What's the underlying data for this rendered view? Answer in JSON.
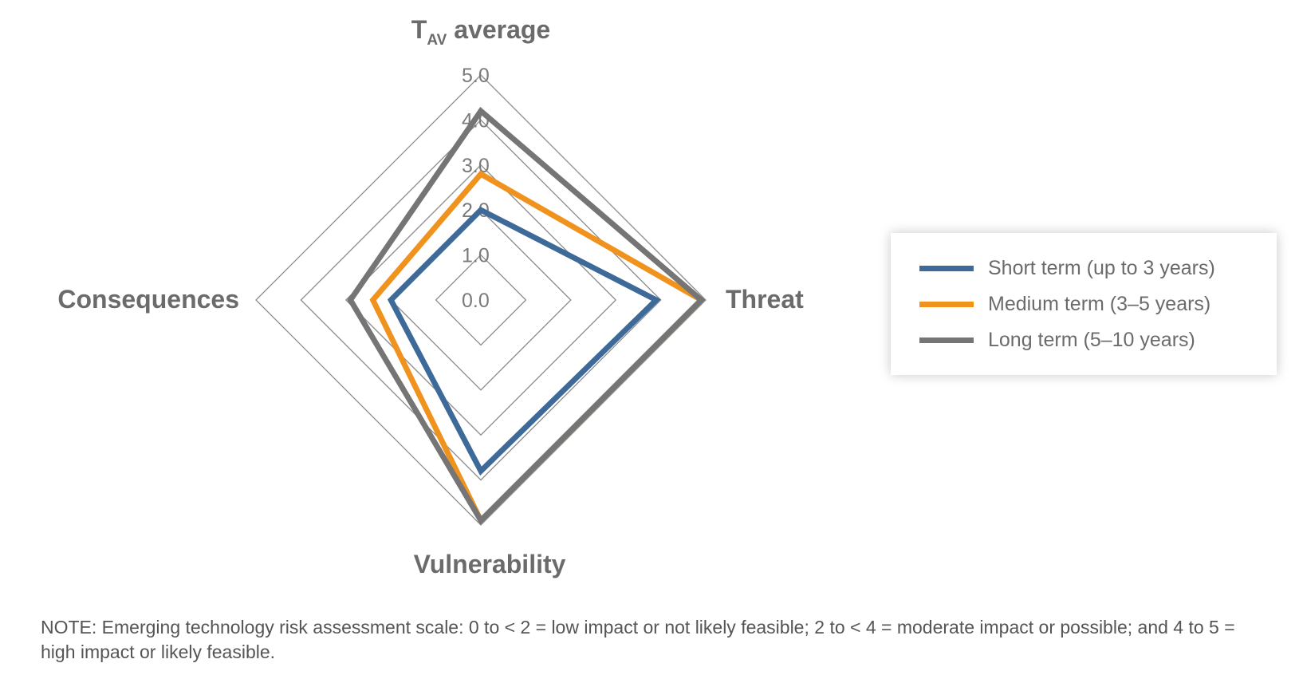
{
  "chart_data": {
    "type": "radar",
    "axes": [
      {
        "name": "TAV average",
        "main": "T",
        "sub": "AV",
        "rest": " average"
      },
      {
        "name": "Threat"
      },
      {
        "name": "Vulnerability"
      },
      {
        "name": "Consequences"
      }
    ],
    "rlim": [
      0,
      5
    ],
    "ticks": [
      "0.0",
      "1.0",
      "2.0",
      "3.0",
      "4.0",
      "5.0"
    ],
    "series": [
      {
        "name": "Short term (up to 3 years)",
        "color": "#3d6a99",
        "values": [
          2.0,
          3.9,
          3.8,
          2.0
        ]
      },
      {
        "name": "Medium term (3–5 years)",
        "color": "#f0921e",
        "values": [
          2.8,
          4.9,
          4.9,
          2.4
        ]
      },
      {
        "name": "Long term (5–10 years)",
        "color": "#757575",
        "values": [
          4.2,
          4.9,
          4.9,
          2.9
        ]
      }
    ],
    "legend_position": "right"
  },
  "note": "NOTE: Emerging technology risk assessment scale: 0 to < 2 = low impact or not likely feasible; 2 to < 4 = moderate impact or possible; and 4 to 5 = high impact or likely feasible."
}
